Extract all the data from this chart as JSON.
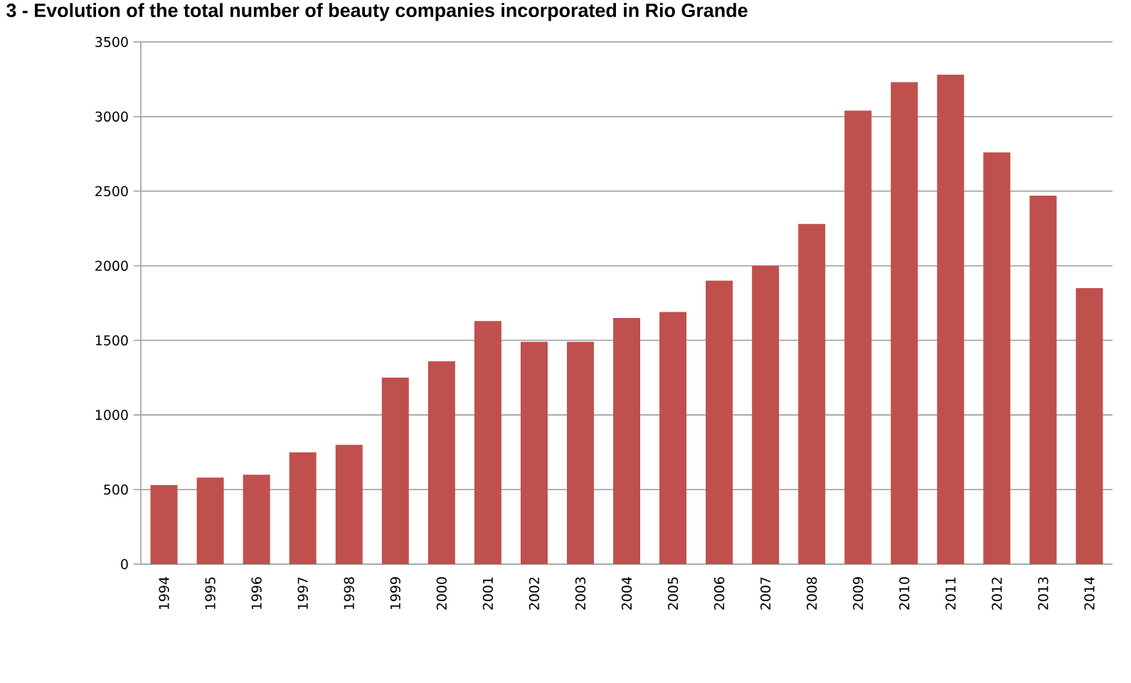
{
  "chart_data": {
    "type": "bar",
    "title": "3 - Evolution of the total number of beauty companies incorporated in Rio Grande",
    "categories": [
      "1994",
      "1995",
      "1996",
      "1997",
      "1998",
      "1999",
      "2000",
      "2001",
      "2002",
      "2003",
      "2004",
      "2005",
      "2006",
      "2007",
      "2008",
      "2009",
      "2010",
      "2011",
      "2012",
      "2013",
      "2014"
    ],
    "values": [
      530,
      580,
      600,
      750,
      800,
      1250,
      1360,
      1630,
      1490,
      1490,
      1650,
      1690,
      1900,
      2000,
      2280,
      3040,
      3230,
      3280,
      2760,
      2470,
      1850
    ],
    "color": "#c0504d",
    "ylim": [
      0,
      3500
    ],
    "yticks": [
      0,
      500,
      1000,
      1500,
      2000,
      2500,
      3000,
      3500
    ],
    "grid": "y"
  }
}
